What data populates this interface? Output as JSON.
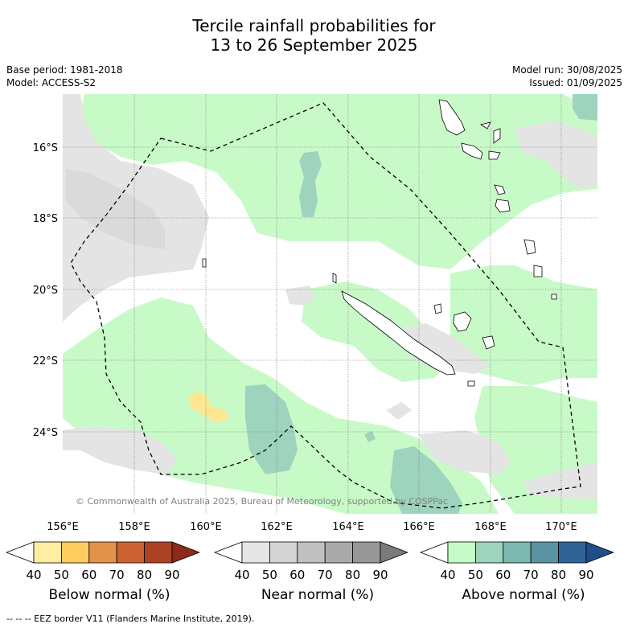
{
  "header": {
    "title_line1": "Tercile rainfall probabilities for",
    "title_line2": "13 to 26 September 2025",
    "base_period": "Base period: 1981-2018",
    "model": "Model: ACCESS-S2",
    "model_run": "Model run: 30/08/2025",
    "issued": "Issued: 01/09/2025"
  },
  "map": {
    "lat_labels": [
      "16°S",
      "18°S",
      "20°S",
      "22°S",
      "24°S"
    ],
    "lon_labels": [
      "156°E",
      "158°E",
      "160°E",
      "162°E",
      "164°E",
      "166°E",
      "168°E",
      "170°E"
    ],
    "copyright": "© Commonwealth of Australia 2025, Bureau of Meteorology, supported by COSPPac",
    "colors": {
      "above_50": "#c8fac8",
      "above_60": "#9ed4be",
      "near_40": "#e4e4e4",
      "below_40": "#fce892"
    }
  },
  "colorbars": [
    {
      "label": "Below normal (%)",
      "ticks": [
        "40",
        "50",
        "60",
        "70",
        "80",
        "90"
      ],
      "colors": [
        "#ffffff",
        "#fdeea2",
        "#fdcd60",
        "#e2924a",
        "#cc6234",
        "#ab4224",
        "#8e2a1a"
      ]
    },
    {
      "label": "Near normal (%)",
      "ticks": [
        "40",
        "50",
        "60",
        "70",
        "80",
        "90"
      ],
      "colors": [
        "#ffffff",
        "#e6e6e6",
        "#d4d4d4",
        "#c0c0c0",
        "#aaaaaa",
        "#979797",
        "#7a7a7a"
      ]
    },
    {
      "label": "Above normal (%)",
      "ticks": [
        "40",
        "50",
        "60",
        "70",
        "80",
        "90"
      ],
      "colors": [
        "#ffffff",
        "#c6fac6",
        "#9ed4be",
        "#7ab8b0",
        "#5a94a4",
        "#316296",
        "#1f4e88"
      ]
    }
  ],
  "footer": "--  --  -- EEZ border V11 (Flanders Marine Institute, 2019)."
}
